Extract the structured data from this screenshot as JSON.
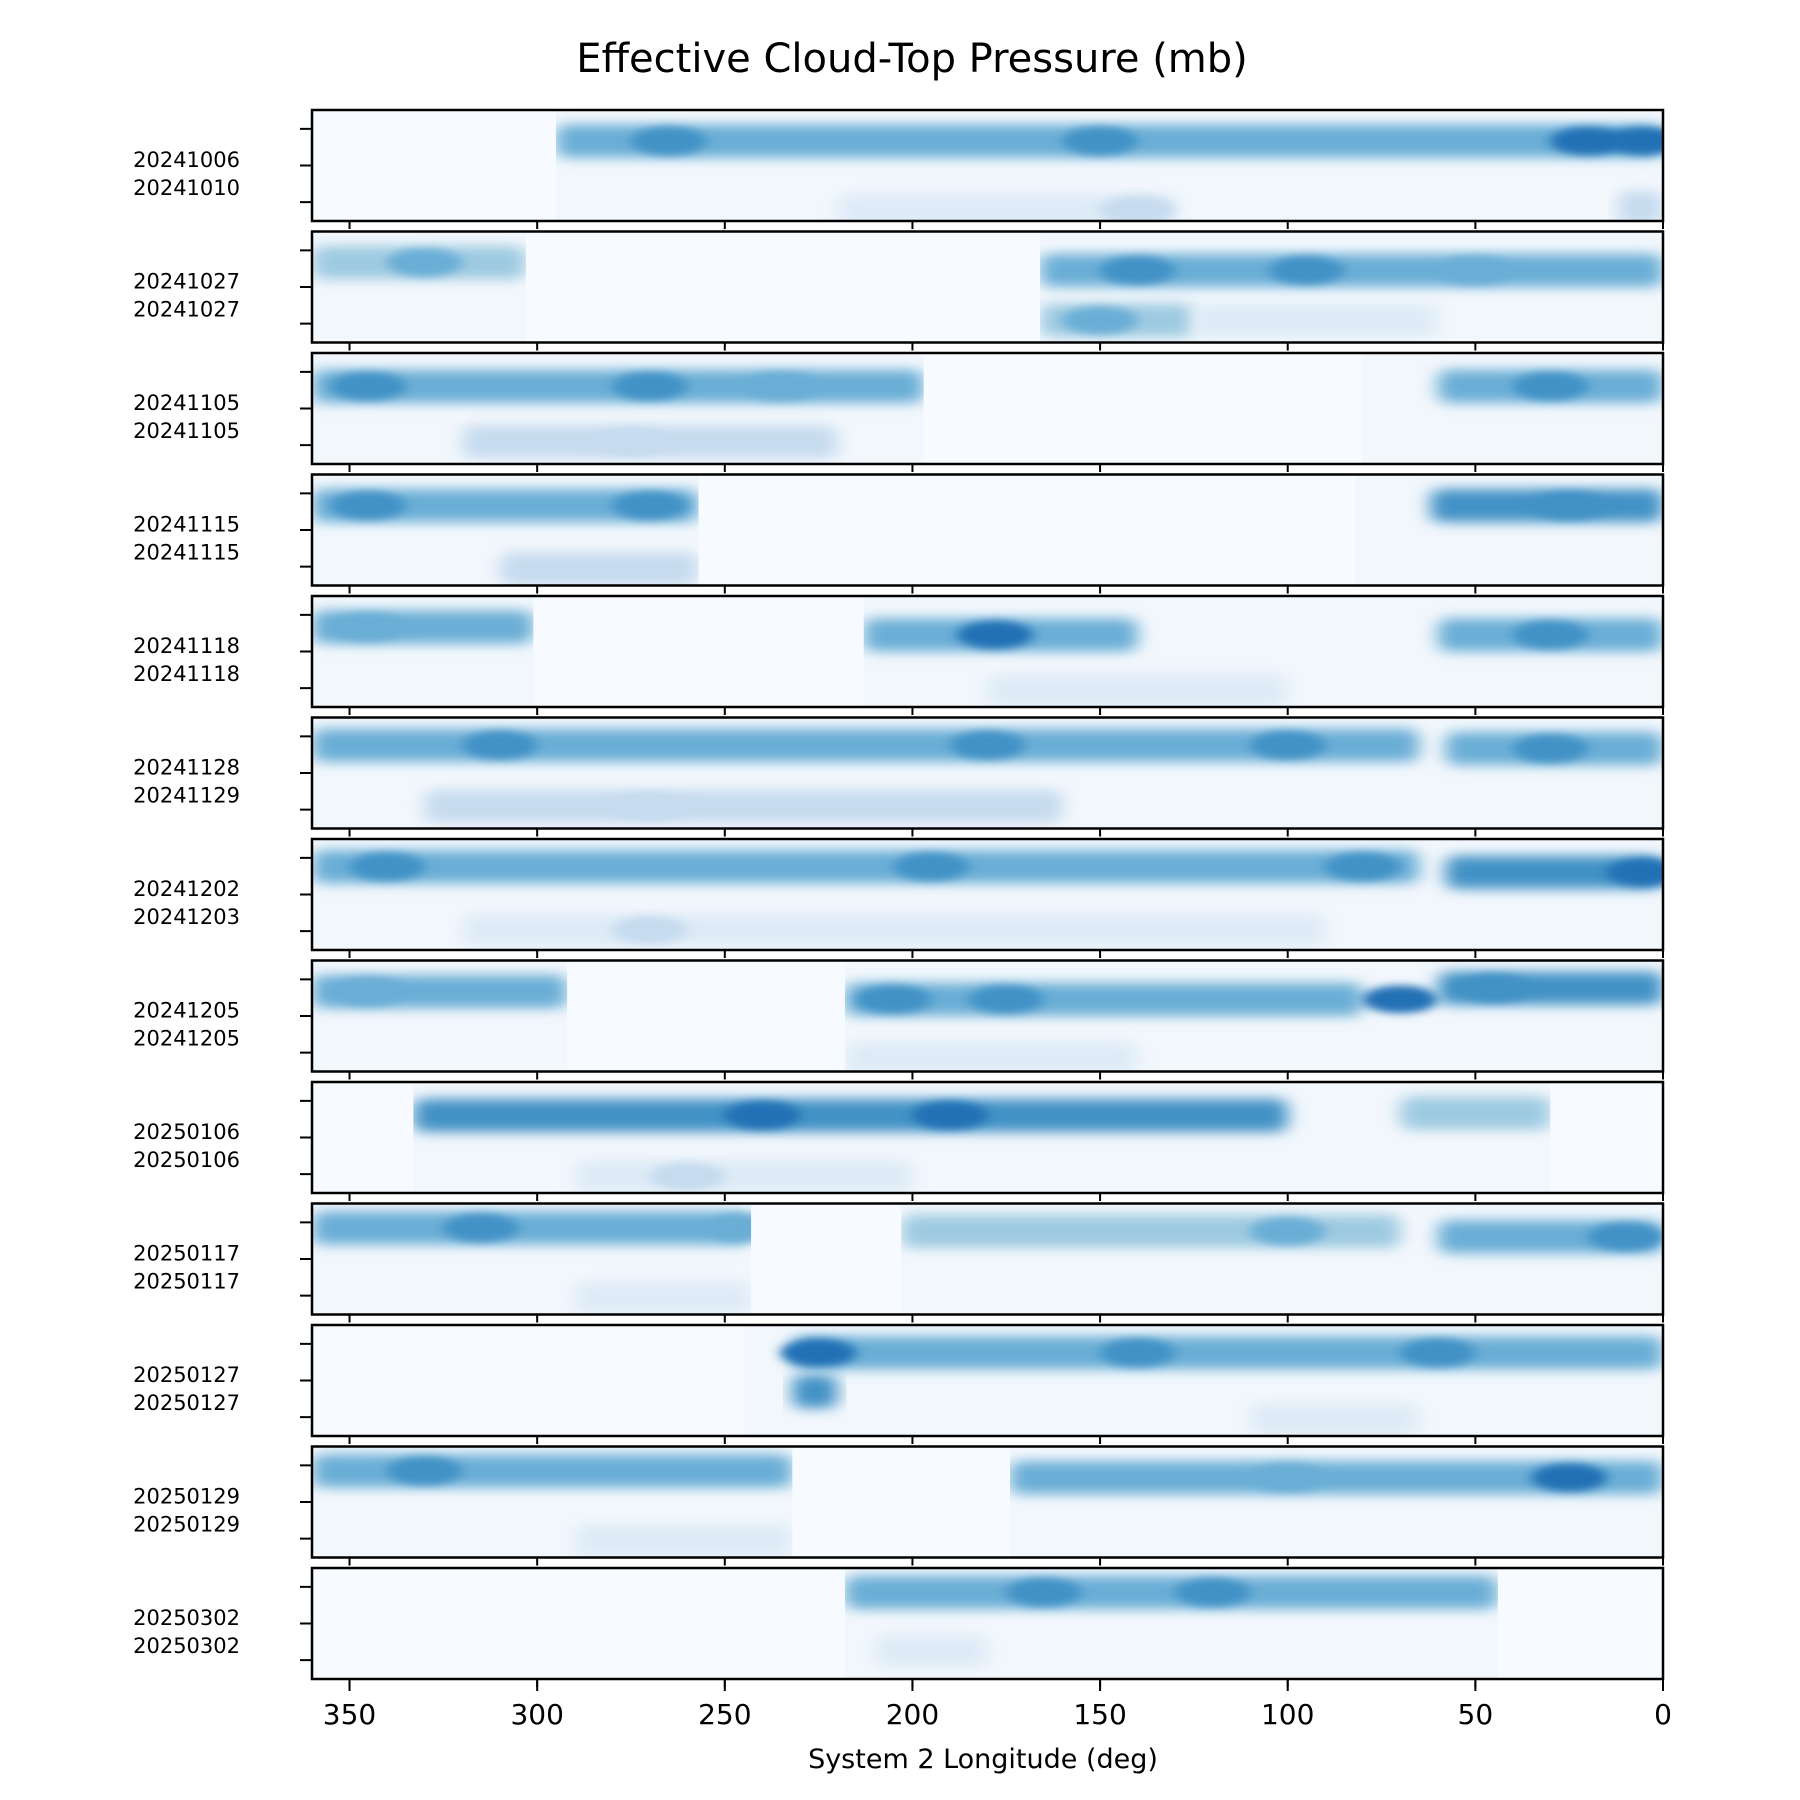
{
  "chart_data": {
    "type": "heatmap",
    "title": "Effective Cloud-Top Pressure (mb)",
    "xlabel": "System 2 Longitude (deg)",
    "ylabel": "",
    "x_range": [
      360,
      0
    ],
    "x_direction": "decreasing-left-to-right",
    "x_ticks": [
      350,
      300,
      250,
      200,
      150,
      100,
      50,
      0
    ],
    "grid": false,
    "legend": "none",
    "colormap": [
      "#f7fbff",
      "#deebf7",
      "#c6dbef",
      "#9ecae1",
      "#6baed6",
      "#4292c6",
      "#2171b5",
      "#08519c"
    ],
    "panels": [
      {
        "labels": [
          "20241006",
          "20241010"
        ],
        "coverage": [
          [
            295,
            0
          ]
        ],
        "bands": [
          {
            "y": 0.28,
            "lon": [
              295,
              0
            ],
            "level": 0.55,
            "peaks": [
              [
                265,
                0.75
              ],
              [
                150,
                0.65
              ],
              [
                20,
                0.8
              ],
              [
                5,
                0.9
              ]
            ]
          },
          {
            "y": 0.9,
            "lon": [
              220,
              130
            ],
            "level": 0.15,
            "peaks": [
              [
                140,
                0.25
              ]
            ]
          },
          {
            "y": 0.88,
            "lon": [
              12,
              0
            ],
            "level": 0.35,
            "peaks": []
          }
        ]
      },
      {
        "labels": [
          "20241027",
          "20241027"
        ],
        "coverage": [
          [
            360,
            303
          ],
          [
            166,
            0
          ]
        ],
        "bands": [
          {
            "y": 0.28,
            "lon": [
              360,
              303
            ],
            "level": 0.4,
            "peaks": [
              [
                330,
                0.5
              ]
            ]
          },
          {
            "y": 0.35,
            "lon": [
              166,
              0
            ],
            "level": 0.55,
            "peaks": [
              [
                140,
                0.75
              ],
              [
                95,
                0.65
              ],
              [
                50,
                0.6
              ]
            ]
          },
          {
            "y": 0.8,
            "lon": [
              166,
              125
            ],
            "level": 0.45,
            "peaks": [
              [
                150,
                0.55
              ]
            ]
          },
          {
            "y": 0.8,
            "lon": [
              125,
              60
            ],
            "level": 0.15,
            "peaks": []
          }
        ]
      },
      {
        "labels": [
          "20241105",
          "20241105"
        ],
        "coverage": [
          [
            360,
            197
          ],
          [
            80,
            0
          ]
        ],
        "bands": [
          {
            "y": 0.3,
            "lon": [
              360,
              197
            ],
            "level": 0.55,
            "peaks": [
              [
                345,
                0.7
              ],
              [
                270,
                0.75
              ],
              [
                235,
                0.6
              ]
            ]
          },
          {
            "y": 0.8,
            "lon": [
              320,
              220
            ],
            "level": 0.25,
            "peaks": [
              [
                275,
                0.35
              ]
            ]
          },
          {
            "y": 0.3,
            "lon": [
              60,
              0
            ],
            "level": 0.6,
            "peaks": [
              [
                30,
                0.7
              ]
            ]
          }
        ]
      },
      {
        "labels": [
          "20241115",
          "20241115"
        ],
        "coverage": [
          [
            360,
            257
          ],
          [
            82,
            0
          ]
        ],
        "bands": [
          {
            "y": 0.28,
            "lon": [
              360,
              257
            ],
            "level": 0.6,
            "peaks": [
              [
                345,
                0.75
              ],
              [
                270,
                0.7
              ]
            ]
          },
          {
            "y": 0.85,
            "lon": [
              310,
              257
            ],
            "level": 0.3,
            "peaks": []
          },
          {
            "y": 0.28,
            "lon": [
              62,
              0
            ],
            "level": 0.65,
            "peaks": [
              [
                25,
                0.75
              ]
            ]
          }
        ]
      },
      {
        "labels": [
          "20241118",
          "20241118"
        ],
        "coverage": [
          [
            360,
            301
          ],
          [
            213,
            0
          ]
        ],
        "bands": [
          {
            "y": 0.28,
            "lon": [
              360,
              301
            ],
            "level": 0.5,
            "peaks": [
              [
                345,
                0.6
              ]
            ]
          },
          {
            "y": 0.35,
            "lon": [
              213,
              140
            ],
            "level": 0.5,
            "peaks": [
              [
                178,
                0.9
              ]
            ]
          },
          {
            "y": 0.35,
            "lon": [
              60,
              0
            ],
            "level": 0.55,
            "peaks": [
              [
                30,
                0.65
              ]
            ]
          },
          {
            "y": 0.85,
            "lon": [
              180,
              100
            ],
            "level": 0.15,
            "peaks": []
          }
        ]
      },
      {
        "labels": [
          "20241128",
          "20241129"
        ],
        "coverage": [
          [
            360,
            0
          ]
        ],
        "bands": [
          {
            "y": 0.25,
            "lon": [
              360,
              65
            ],
            "level": 0.6,
            "peaks": [
              [
                310,
                0.7
              ],
              [
                180,
                0.7
              ],
              [
                100,
                0.65
              ]
            ]
          },
          {
            "y": 0.28,
            "lon": [
              58,
              0
            ],
            "level": 0.6,
            "peaks": [
              [
                30,
                0.65
              ]
            ]
          },
          {
            "y": 0.8,
            "lon": [
              330,
              160
            ],
            "level": 0.25,
            "peaks": [
              [
                270,
                0.35
              ]
            ]
          }
        ]
      },
      {
        "labels": [
          "20241202",
          "20241203"
        ],
        "coverage": [
          [
            360,
            0
          ]
        ],
        "bands": [
          {
            "y": 0.25,
            "lon": [
              360,
              65
            ],
            "level": 0.6,
            "peaks": [
              [
                340,
                0.75
              ],
              [
                195,
                0.75
              ],
              [
                80,
                0.7
              ]
            ]
          },
          {
            "y": 0.3,
            "lon": [
              58,
              0
            ],
            "level": 0.65,
            "peaks": [
              [
                5,
                0.8
              ]
            ]
          },
          {
            "y": 0.82,
            "lon": [
              320,
              90
            ],
            "level": 0.2,
            "peaks": [
              [
                270,
                0.3
              ]
            ]
          }
        ]
      },
      {
        "labels": [
          "20241205",
          "20241205"
        ],
        "coverage": [
          [
            360,
            292
          ],
          [
            218,
            0
          ]
        ],
        "bands": [
          {
            "y": 0.28,
            "lon": [
              360,
              292
            ],
            "level": 0.5,
            "peaks": [
              [
                345,
                0.6
              ]
            ]
          },
          {
            "y": 0.35,
            "lon": [
              218,
              80
            ],
            "level": 0.6,
            "peaks": [
              [
                205,
                0.75
              ],
              [
                175,
                0.75
              ],
              [
                70,
                0.9
              ]
            ]
          },
          {
            "y": 0.25,
            "lon": [
              60,
              0
            ],
            "level": 0.65,
            "peaks": [
              [
                45,
                0.75
              ]
            ]
          },
          {
            "y": 0.88,
            "lon": [
              218,
              140
            ],
            "level": 0.2,
            "peaks": []
          }
        ]
      },
      {
        "labels": [
          "20250106",
          "20250106"
        ],
        "coverage": [
          [
            333,
            30
          ]
        ],
        "bands": [
          {
            "y": 0.3,
            "lon": [
              333,
              100
            ],
            "level": 0.65,
            "peaks": [
              [
                240,
                0.8
              ],
              [
                190,
                0.85
              ]
            ]
          },
          {
            "y": 0.28,
            "lon": [
              70,
              30
            ],
            "level": 0.45,
            "peaks": []
          },
          {
            "y": 0.85,
            "lon": [
              290,
              200
            ],
            "level": 0.2,
            "peaks": [
              [
                260,
                0.3
              ]
            ]
          }
        ]
      },
      {
        "labels": [
          "20250117",
          "20250117"
        ],
        "coverage": [
          [
            360,
            243
          ],
          [
            203,
            0
          ]
        ],
        "bands": [
          {
            "y": 0.22,
            "lon": [
              360,
              243
            ],
            "level": 0.5,
            "peaks": [
              [
                315,
                0.7
              ],
              [
                245,
                0.55
              ]
            ]
          },
          {
            "y": 0.25,
            "lon": [
              203,
              70
            ],
            "level": 0.45,
            "peaks": [
              [
                100,
                0.5
              ]
            ]
          },
          {
            "y": 0.3,
            "lon": [
              60,
              0
            ],
            "level": 0.6,
            "peaks": [
              [
                10,
                0.7
              ]
            ]
          },
          {
            "y": 0.85,
            "lon": [
              290,
              243
            ],
            "level": 0.2,
            "peaks": []
          }
        ]
      },
      {
        "labels": [
          "20250127",
          "20250127"
        ],
        "coverage": [
          [
            245,
            0
          ]
        ],
        "bands": [
          {
            "y": 0.25,
            "lon": [
              232,
              0
            ],
            "level": 0.6,
            "peaks": [
              [
                225,
                0.85
              ],
              [
                140,
                0.7
              ],
              [
                60,
                0.75
              ]
            ]
          },
          {
            "y": 0.6,
            "lon": [
              232,
              220
            ],
            "level": 0.7,
            "peaks": []
          },
          {
            "y": 0.85,
            "lon": [
              110,
              65
            ],
            "level": 0.2,
            "peaks": []
          }
        ]
      },
      {
        "labels": [
          "20250129",
          "20250129"
        ],
        "coverage": [
          [
            360,
            232
          ],
          [
            174,
            0
          ]
        ],
        "bands": [
          {
            "y": 0.22,
            "lon": [
              360,
              232
            ],
            "level": 0.55,
            "peaks": [
              [
                330,
                0.7
              ]
            ]
          },
          {
            "y": 0.28,
            "lon": [
              174,
              0
            ],
            "level": 0.5,
            "peaks": [
              [
                100,
                0.55
              ],
              [
                25,
                0.8
              ]
            ]
          },
          {
            "y": 0.85,
            "lon": [
              290,
              232
            ],
            "level": 0.2,
            "peaks": []
          }
        ]
      },
      {
        "labels": [
          "20250302",
          "20250302"
        ],
        "coverage": [
          [
            218,
            44
          ]
        ],
        "bands": [
          {
            "y": 0.22,
            "lon": [
              218,
              44
            ],
            "level": 0.6,
            "peaks": [
              [
                165,
                0.75
              ],
              [
                120,
                0.65
              ]
            ]
          },
          {
            "y": 0.75,
            "lon": [
              210,
              180
            ],
            "level": 0.15,
            "peaks": []
          }
        ]
      }
    ]
  }
}
